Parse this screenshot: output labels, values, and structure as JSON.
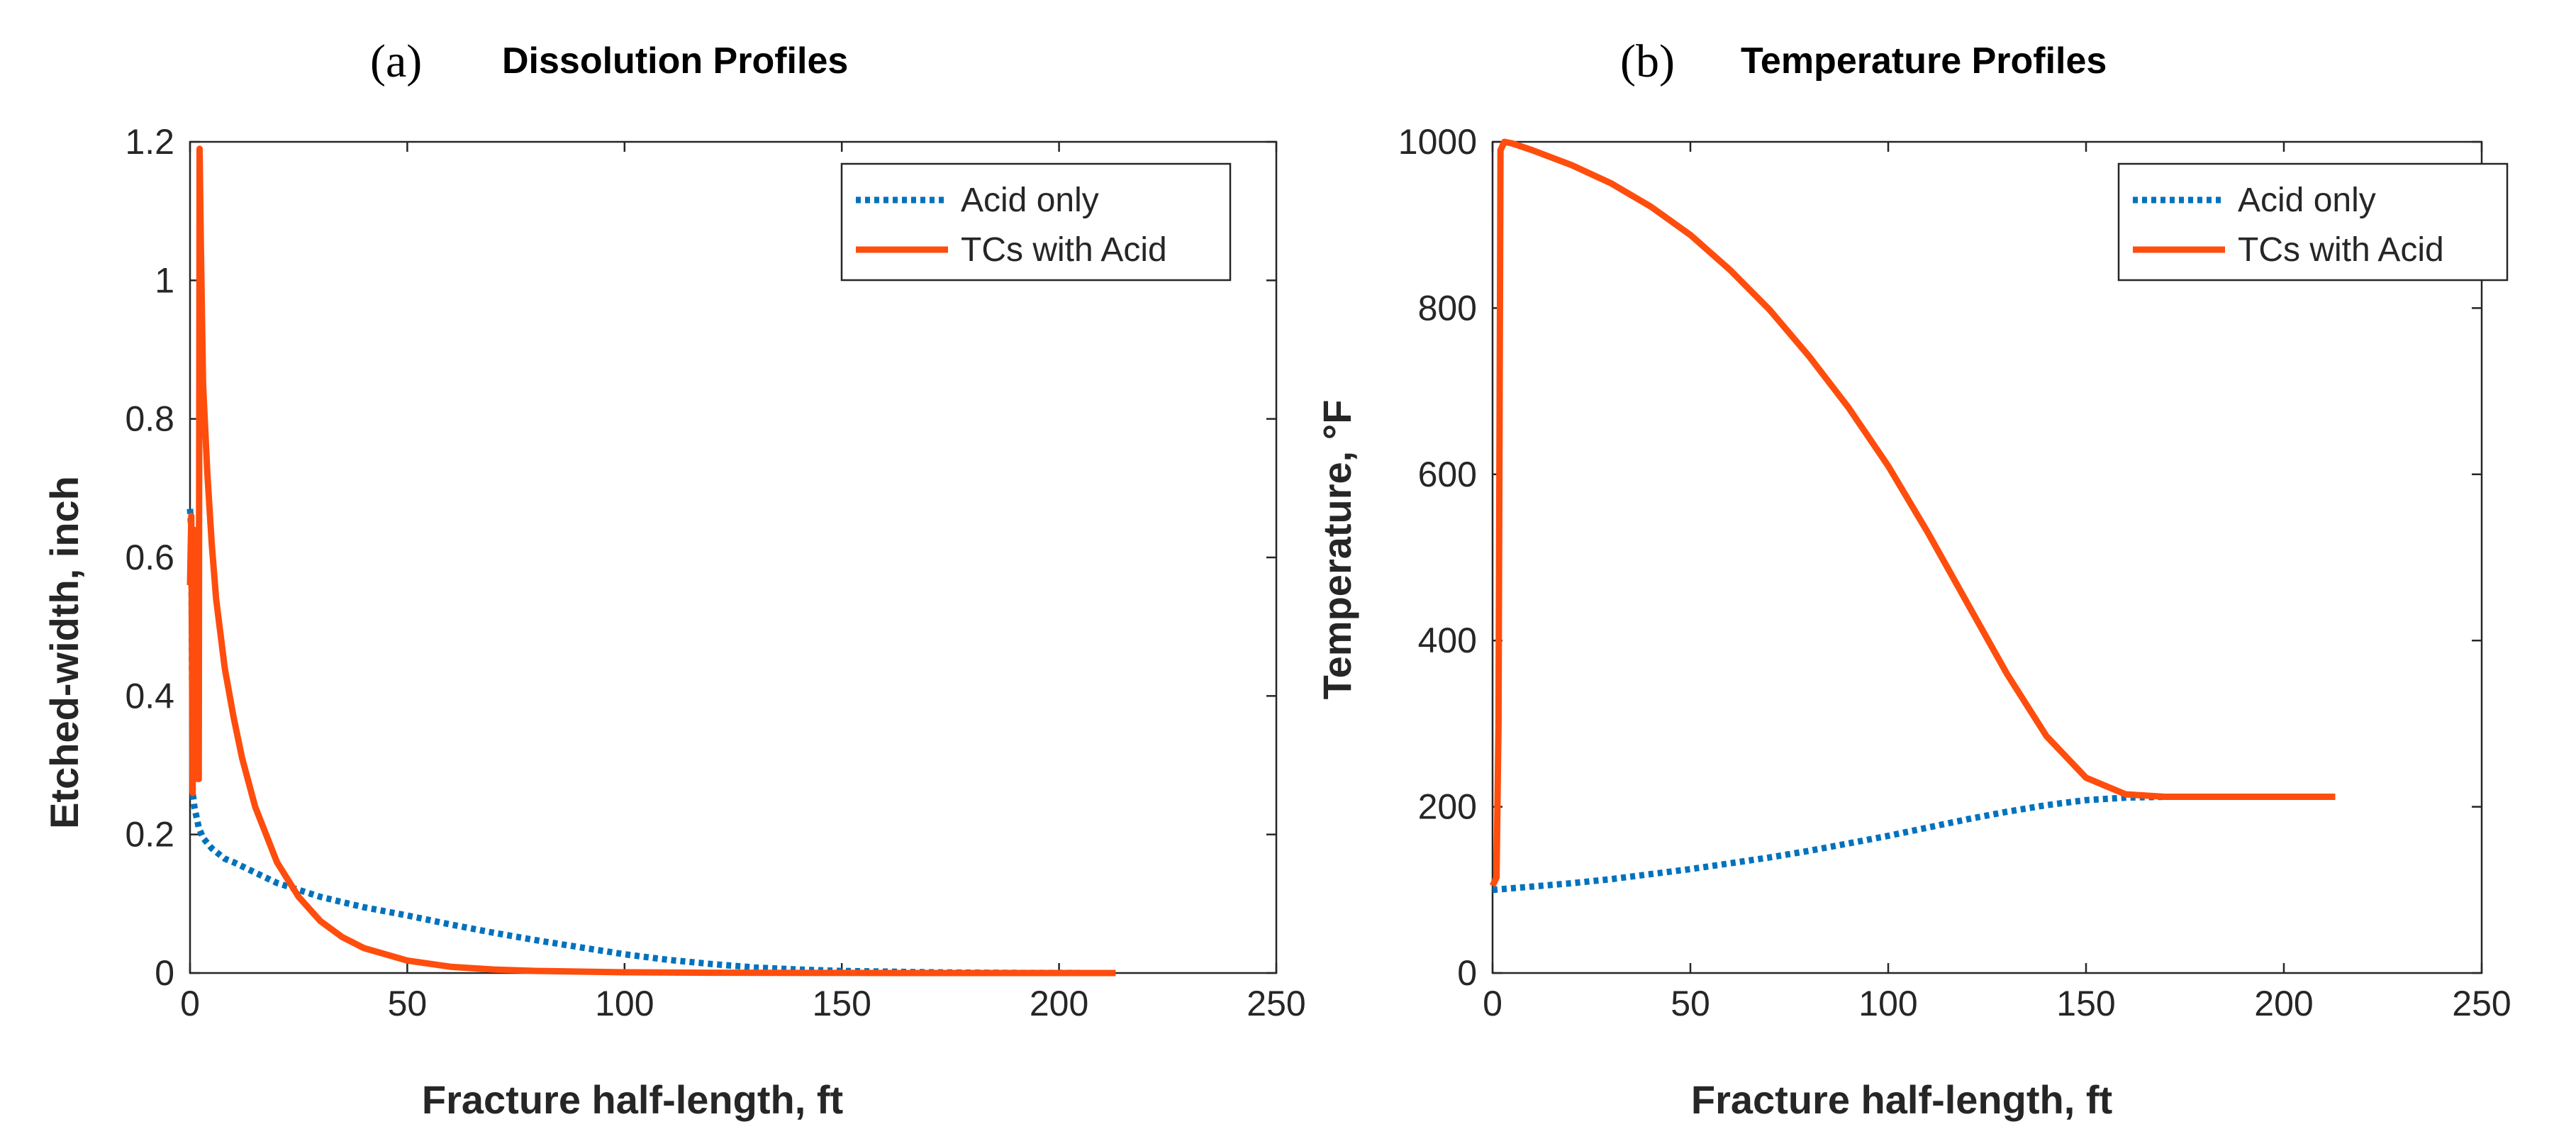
{
  "colors": {
    "acid": "#0072BD",
    "tcs": "#FF4D0D",
    "axis": "#262626"
  },
  "chart_data": [
    {
      "type": "line",
      "panel_label": "(a)",
      "title": "Dissolution Profiles",
      "xlabel": "Fracture half-length, ft",
      "ylabel": "Etched-width, inch",
      "xlim": [
        0,
        250
      ],
      "ylim": [
        0,
        1.2
      ],
      "xticks": [
        0,
        50,
        100,
        150,
        200,
        250
      ],
      "yticks": [
        0,
        0.2,
        0.4,
        0.6,
        0.8,
        1,
        1.2
      ],
      "xtick_labels": [
        "0",
        "50",
        "100",
        "150",
        "200",
        "250"
      ],
      "ytick_labels": [
        "0",
        "0.2",
        "0.4",
        "0.6",
        "0.8",
        "1",
        "1.2"
      ],
      "legend": {
        "position": "top-right",
        "entries": [
          "Acid only",
          "TCs with Acid"
        ]
      },
      "series": [
        {
          "name": "Acid only",
          "style": "dotted",
          "x": [
            0.0,
            0.3,
            0.6,
            1,
            2,
            3,
            5,
            8,
            10,
            15,
            20,
            25,
            30,
            40,
            50,
            60,
            70,
            80,
            90,
            100,
            110,
            120,
            130,
            140,
            150,
            160,
            170,
            180,
            190,
            200,
            213
          ],
          "y": [
            0.67,
            0.64,
            0.26,
            0.24,
            0.21,
            0.195,
            0.18,
            0.165,
            0.16,
            0.145,
            0.13,
            0.12,
            0.11,
            0.095,
            0.083,
            0.07,
            0.058,
            0.047,
            0.037,
            0.027,
            0.019,
            0.013,
            0.008,
            0.005,
            0.003,
            0.002,
            0.001,
            0.0005,
            0.0002,
            0.0001,
            0.0
          ]
        },
        {
          "name": "TCs with Acid",
          "style": "solid",
          "x": [
            0.0,
            0.3,
            0.6,
            0.9,
            1.2,
            1.5,
            1.8,
            2.0,
            2.2,
            2.5,
            3,
            4,
            5,
            6,
            8,
            10,
            12,
            15,
            20,
            25,
            30,
            35,
            40,
            50,
            60,
            70,
            80,
            100,
            120,
            150,
            180,
            213
          ],
          "y": [
            0.56,
            0.66,
            0.26,
            0.64,
            0.28,
            0.6,
            0.3,
            0.28,
            1.19,
            1.05,
            0.85,
            0.72,
            0.62,
            0.54,
            0.44,
            0.37,
            0.31,
            0.24,
            0.16,
            0.11,
            0.075,
            0.052,
            0.036,
            0.018,
            0.009,
            0.005,
            0.003,
            0.001,
            0.0004,
            0.0001,
            0.0,
            0.0
          ]
        }
      ]
    },
    {
      "type": "line",
      "panel_label": "(b)",
      "title": "Temperature Profiles",
      "xlabel": "Fracture half-length, ft",
      "ylabel": "Temperature, °F",
      "xlim": [
        0,
        250
      ],
      "ylim": [
        0,
        1000
      ],
      "xticks": [
        0,
        50,
        100,
        150,
        200,
        250
      ],
      "yticks": [
        0,
        200,
        400,
        600,
        800,
        1000
      ],
      "xtick_labels": [
        "0",
        "50",
        "100",
        "150",
        "200",
        "250"
      ],
      "ytick_labels": [
        "0",
        "200",
        "400",
        "600",
        "800",
        "1000"
      ],
      "legend": {
        "position": "top-right",
        "entries": [
          "Acid only",
          "TCs with Acid"
        ]
      },
      "series": [
        {
          "name": "Acid only",
          "style": "dotted",
          "x": [
            0,
            10,
            20,
            30,
            40,
            50,
            60,
            70,
            80,
            90,
            100,
            110,
            120,
            130,
            140,
            150,
            160,
            170,
            180,
            190,
            200,
            213
          ],
          "y": [
            100,
            104,
            108,
            113,
            119,
            125,
            132,
            139,
            147,
            156,
            165,
            175,
            185,
            194,
            202,
            208,
            211,
            212,
            212,
            212,
            212,
            212
          ]
        },
        {
          "name": "TCs with Acid",
          "style": "solid",
          "x": [
            0,
            1,
            1.5,
            2,
            3,
            5,
            10,
            20,
            30,
            40,
            50,
            60,
            70,
            80,
            90,
            100,
            110,
            120,
            130,
            140,
            150,
            160,
            170,
            180,
            190,
            200,
            213
          ],
          "y": [
            105,
            115,
            300,
            990,
            1000,
            998,
            990,
            972,
            950,
            922,
            888,
            846,
            798,
            742,
            680,
            610,
            530,
            445,
            360,
            285,
            235,
            215,
            212,
            212,
            212,
            212,
            212
          ]
        }
      ]
    }
  ]
}
